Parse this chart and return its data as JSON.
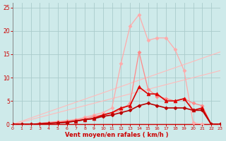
{
  "xlabel": "Vent moyen/en rafales ( km/h )",
  "bg_color": "#ceeaea",
  "grid_color": "#aacccc",
  "xlim": [
    0,
    23
  ],
  "ylim": [
    0,
    26
  ],
  "yticks": [
    0,
    5,
    10,
    15,
    20,
    25
  ],
  "xticks": [
    0,
    1,
    2,
    3,
    4,
    5,
    6,
    7,
    8,
    9,
    10,
    11,
    12,
    13,
    14,
    15,
    16,
    17,
    18,
    19,
    20,
    21,
    22,
    23
  ],
  "series": [
    {
      "color": "#ffbbbb",
      "linewidth": 0.8,
      "marker": null,
      "markersize": 0,
      "x": [
        0,
        23
      ],
      "y": [
        0,
        15.5
      ]
    },
    {
      "color": "#ffbbbb",
      "linewidth": 0.8,
      "marker": null,
      "markersize": 0,
      "x": [
        0,
        23
      ],
      "y": [
        0,
        11.5
      ]
    },
    {
      "color": "#ffaaaa",
      "linewidth": 0.9,
      "marker": "D",
      "markersize": 2.5,
      "x": [
        0,
        1,
        2,
        3,
        4,
        5,
        6,
        7,
        8,
        9,
        10,
        11,
        12,
        13,
        14,
        15,
        16,
        17,
        18,
        19,
        20,
        21,
        22,
        23
      ],
      "y": [
        0,
        0,
        0,
        0.2,
        0.4,
        0.6,
        0.8,
        1.0,
        1.5,
        2.0,
        2.5,
        3.5,
        13.0,
        21.0,
        23.5,
        18.0,
        18.5,
        18.5,
        16.0,
        11.5,
        0.3,
        0,
        0,
        0
      ]
    },
    {
      "color": "#ff8888",
      "linewidth": 0.9,
      "marker": "D",
      "markersize": 2.5,
      "x": [
        0,
        1,
        2,
        3,
        4,
        5,
        6,
        7,
        8,
        9,
        10,
        11,
        12,
        13,
        14,
        15,
        16,
        17,
        18,
        19,
        20,
        21,
        22,
        23
      ],
      "y": [
        0,
        0,
        0,
        0.2,
        0.4,
        0.5,
        0.7,
        1.0,
        1.2,
        1.7,
        2.0,
        2.5,
        3.0,
        4.5,
        15.5,
        7.5,
        6.0,
        5.5,
        5.0,
        5.5,
        4.5,
        4.0,
        0,
        0
      ]
    },
    {
      "color": "#dd0000",
      "linewidth": 1.2,
      "marker": "^",
      "markersize": 3.5,
      "x": [
        0,
        1,
        2,
        3,
        4,
        5,
        6,
        7,
        8,
        9,
        10,
        11,
        12,
        13,
        14,
        15,
        16,
        17,
        18,
        19,
        20,
        21,
        22,
        23
      ],
      "y": [
        0,
        0,
        0,
        0.1,
        0.2,
        0.3,
        0.5,
        0.7,
        1.0,
        1.3,
        2.0,
        2.5,
        3.5,
        4.0,
        8.0,
        6.5,
        6.5,
        5.0,
        5.0,
        5.5,
        3.0,
        3.5,
        0,
        0
      ]
    },
    {
      "color": "#bb0000",
      "linewidth": 1.2,
      "marker": "D",
      "markersize": 2.5,
      "x": [
        0,
        1,
        2,
        3,
        4,
        5,
        6,
        7,
        8,
        9,
        10,
        11,
        12,
        13,
        14,
        15,
        16,
        17,
        18,
        19,
        20,
        21,
        22,
        23
      ],
      "y": [
        0,
        0,
        0,
        0.1,
        0.2,
        0.3,
        0.4,
        0.7,
        1.0,
        1.2,
        1.7,
        2.0,
        2.5,
        3.0,
        4.0,
        4.5,
        4.0,
        3.5,
        3.5,
        3.5,
        3.0,
        3.0,
        0,
        0
      ]
    }
  ]
}
